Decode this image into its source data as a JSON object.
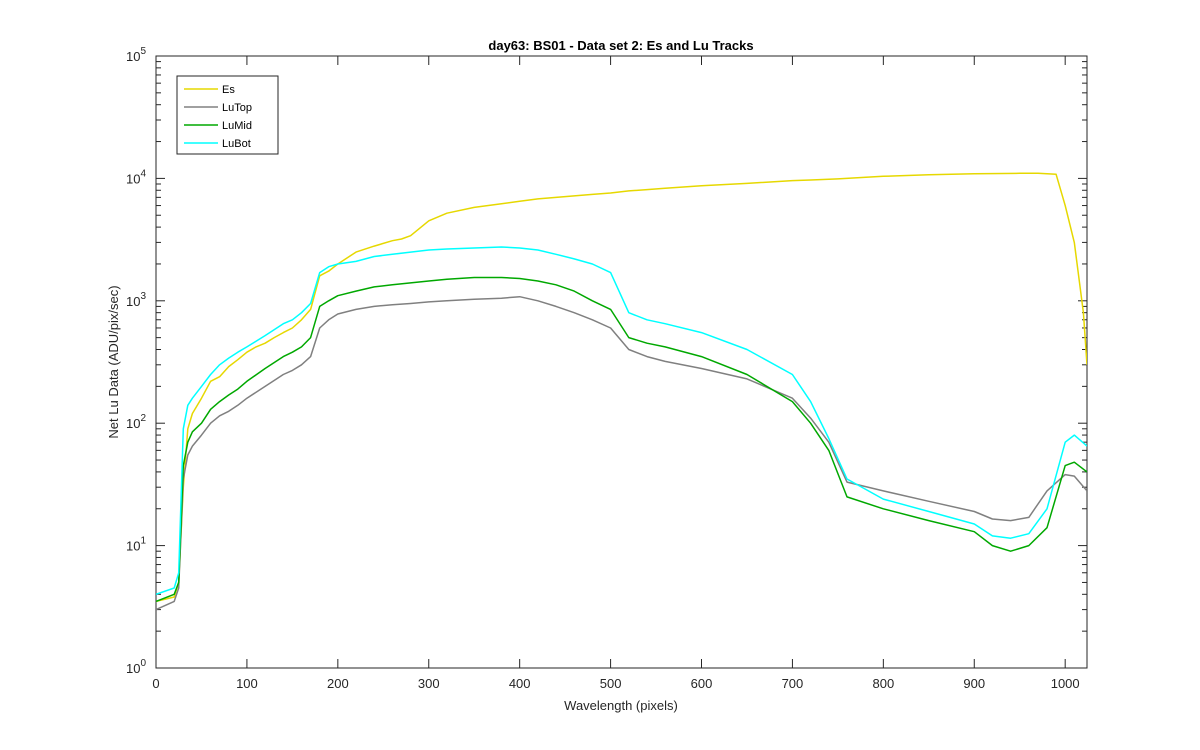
{
  "chart_data": {
    "type": "line",
    "title": "day63: BS01 - Data set 2: Es and Lu Tracks",
    "xlabel": "Wavelength (pixels)",
    "ylabel": "Net Lu Data (ADU/pix/sec)",
    "xlim": [
      0,
      1024
    ],
    "ylim": [
      1,
      100000
    ],
    "yscale": "log",
    "grid": false,
    "legend_position": "top-left",
    "x_ticks": [
      0,
      100,
      200,
      300,
      400,
      500,
      600,
      700,
      800,
      900,
      1000
    ],
    "y_ticks": [
      {
        "base": "10",
        "exp": "0",
        "value": 1
      },
      {
        "base": "10",
        "exp": "1",
        "value": 10
      },
      {
        "base": "10",
        "exp": "2",
        "value": 100
      },
      {
        "base": "10",
        "exp": "3",
        "value": 1000
      },
      {
        "base": "10",
        "exp": "4",
        "value": 10000
      },
      {
        "base": "10",
        "exp": "5",
        "value": 100000
      }
    ],
    "series": [
      {
        "name": "Es",
        "color": "#e6d800",
        "x": [
          0,
          20,
          25,
          30,
          35,
          40,
          50,
          60,
          70,
          80,
          90,
          100,
          110,
          120,
          130,
          140,
          150,
          160,
          170,
          180,
          190,
          200,
          220,
          240,
          260,
          270,
          280,
          300,
          320,
          350,
          380,
          400,
          420,
          440,
          460,
          480,
          500,
          520,
          540,
          560,
          600,
          650,
          700,
          720,
          750,
          800,
          850,
          900,
          950,
          970,
          990,
          1000,
          1010,
          1020,
          1024
        ],
        "y": [
          3.5,
          3.8,
          5,
          30,
          90,
          120,
          160,
          220,
          240,
          290,
          330,
          380,
          420,
          450,
          500,
          550,
          600,
          700,
          850,
          1600,
          1750,
          2000,
          2500,
          2800,
          3100,
          3200,
          3400,
          4500,
          5200,
          5800,
          6200,
          6500,
          6800,
          7000,
          7200,
          7400,
          7600,
          7900,
          8100,
          8300,
          8700,
          9100,
          9600,
          9700,
          9900,
          10400,
          10700,
          10900,
          11000,
          11000,
          10800,
          6000,
          3000,
          800,
          300
        ]
      },
      {
        "name": "LuTop",
        "color": "#808080",
        "x": [
          0,
          20,
          25,
          30,
          35,
          40,
          50,
          60,
          70,
          80,
          90,
          100,
          120,
          140,
          150,
          160,
          170,
          180,
          190,
          200,
          220,
          240,
          260,
          280,
          300,
          320,
          350,
          380,
          400,
          420,
          440,
          460,
          480,
          500,
          520,
          540,
          560,
          600,
          650,
          700,
          720,
          740,
          760,
          800,
          850,
          900,
          920,
          940,
          960,
          980,
          1000,
          1010,
          1024
        ],
        "y": [
          3.0,
          3.5,
          4.5,
          35,
          55,
          65,
          80,
          100,
          115,
          125,
          140,
          160,
          200,
          250,
          270,
          300,
          350,
          600,
          700,
          780,
          850,
          900,
          930,
          950,
          980,
          1000,
          1030,
          1050,
          1080,
          1000,
          900,
          800,
          700,
          600,
          400,
          350,
          320,
          280,
          230,
          160,
          110,
          70,
          33,
          28,
          23,
          19,
          16.5,
          16,
          17,
          28,
          38,
          37,
          28
        ]
      },
      {
        "name": "LuMid",
        "color": "#00a800",
        "x": [
          0,
          20,
          25,
          30,
          35,
          40,
          50,
          60,
          70,
          80,
          90,
          100,
          120,
          140,
          150,
          160,
          170,
          180,
          190,
          200,
          220,
          240,
          260,
          280,
          300,
          320,
          350,
          380,
          400,
          420,
          440,
          460,
          480,
          500,
          520,
          540,
          560,
          600,
          650,
          700,
          720,
          740,
          760,
          800,
          850,
          900,
          920,
          940,
          960,
          980,
          1000,
          1010,
          1024
        ],
        "y": [
          3.5,
          4.0,
          5.0,
          45,
          70,
          85,
          100,
          130,
          150,
          170,
          190,
          220,
          280,
          350,
          380,
          420,
          500,
          900,
          1000,
          1100,
          1200,
          1300,
          1350,
          1400,
          1450,
          1500,
          1550,
          1550,
          1520,
          1450,
          1350,
          1200,
          1000,
          850,
          500,
          450,
          420,
          350,
          250,
          150,
          100,
          60,
          25,
          20,
          16,
          13,
          10,
          9,
          10,
          14,
          45,
          48,
          40
        ]
      },
      {
        "name": "LuBot",
        "color": "#00ffff",
        "x": [
          0,
          20,
          25,
          30,
          35,
          40,
          50,
          60,
          70,
          80,
          90,
          100,
          120,
          140,
          150,
          160,
          170,
          180,
          190,
          200,
          220,
          240,
          260,
          280,
          300,
          320,
          350,
          380,
          400,
          420,
          440,
          460,
          480,
          500,
          520,
          540,
          560,
          600,
          650,
          700,
          720,
          740,
          760,
          800,
          850,
          900,
          920,
          940,
          960,
          980,
          1000,
          1010,
          1024
        ],
        "y": [
          4.0,
          4.5,
          6,
          90,
          140,
          160,
          200,
          250,
          300,
          340,
          380,
          420,
          520,
          650,
          700,
          800,
          950,
          1700,
          1900,
          2000,
          2100,
          2300,
          2400,
          2500,
          2600,
          2650,
          2700,
          2750,
          2700,
          2600,
          2400,
          2200,
          2000,
          1700,
          800,
          700,
          650,
          550,
          400,
          250,
          150,
          75,
          35,
          24,
          19,
          15,
          12,
          11.5,
          12.5,
          20,
          70,
          80,
          65
        ]
      }
    ]
  }
}
